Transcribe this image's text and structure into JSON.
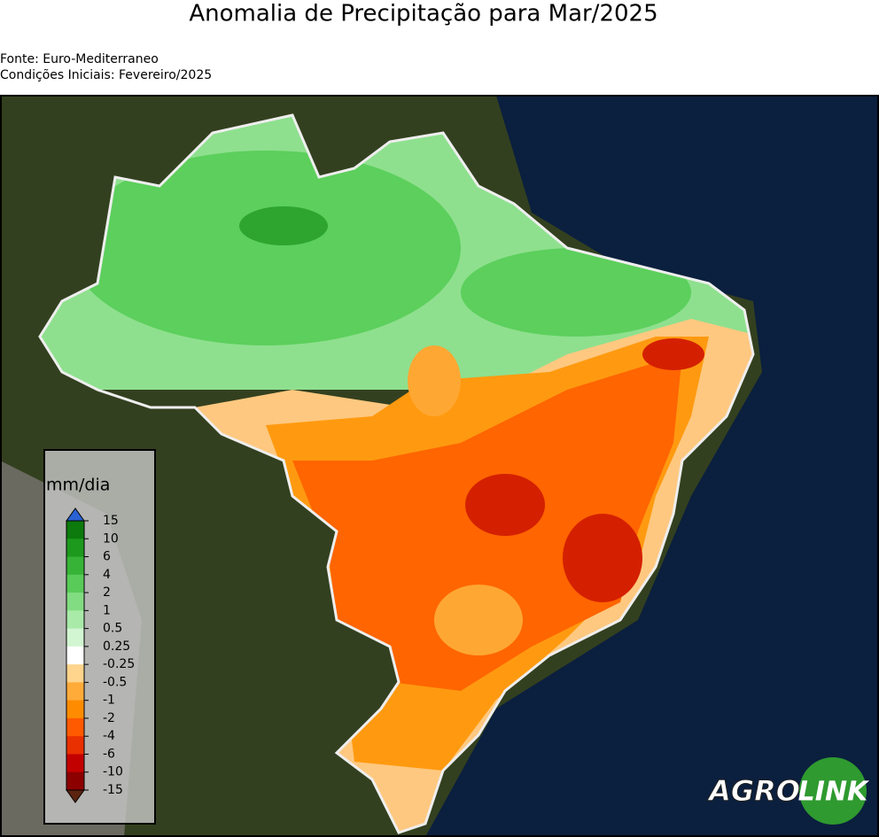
{
  "title": "Anomalia de Precipitação para Mar/2025",
  "source": "Fonte: Euro-Mediterraneo",
  "initial_conditions": "Condições Iniciais: Fevereiro/2025",
  "colorbar": {
    "label": "mm/dia",
    "levels": [
      15,
      10,
      6,
      4,
      2,
      1,
      0.5,
      0.25,
      -0.25,
      -0.5,
      -1,
      -2,
      -4,
      -6,
      -10,
      -15
    ],
    "colors": [
      "#0c7a0c",
      "#1d991d",
      "#37b437",
      "#58cb58",
      "#82dc82",
      "#a9eaa9",
      "#d2f6d2",
      "#ffffff",
      "#ffd48c",
      "#ffab3a",
      "#ff8c00",
      "#ff5a00",
      "#e83000",
      "#c30000",
      "#8c0000"
    ],
    "extend_colors": [
      "#2a62d4",
      "#5a2410"
    ]
  },
  "logo": {
    "left": "AGRO",
    "right": "LINK"
  }
}
